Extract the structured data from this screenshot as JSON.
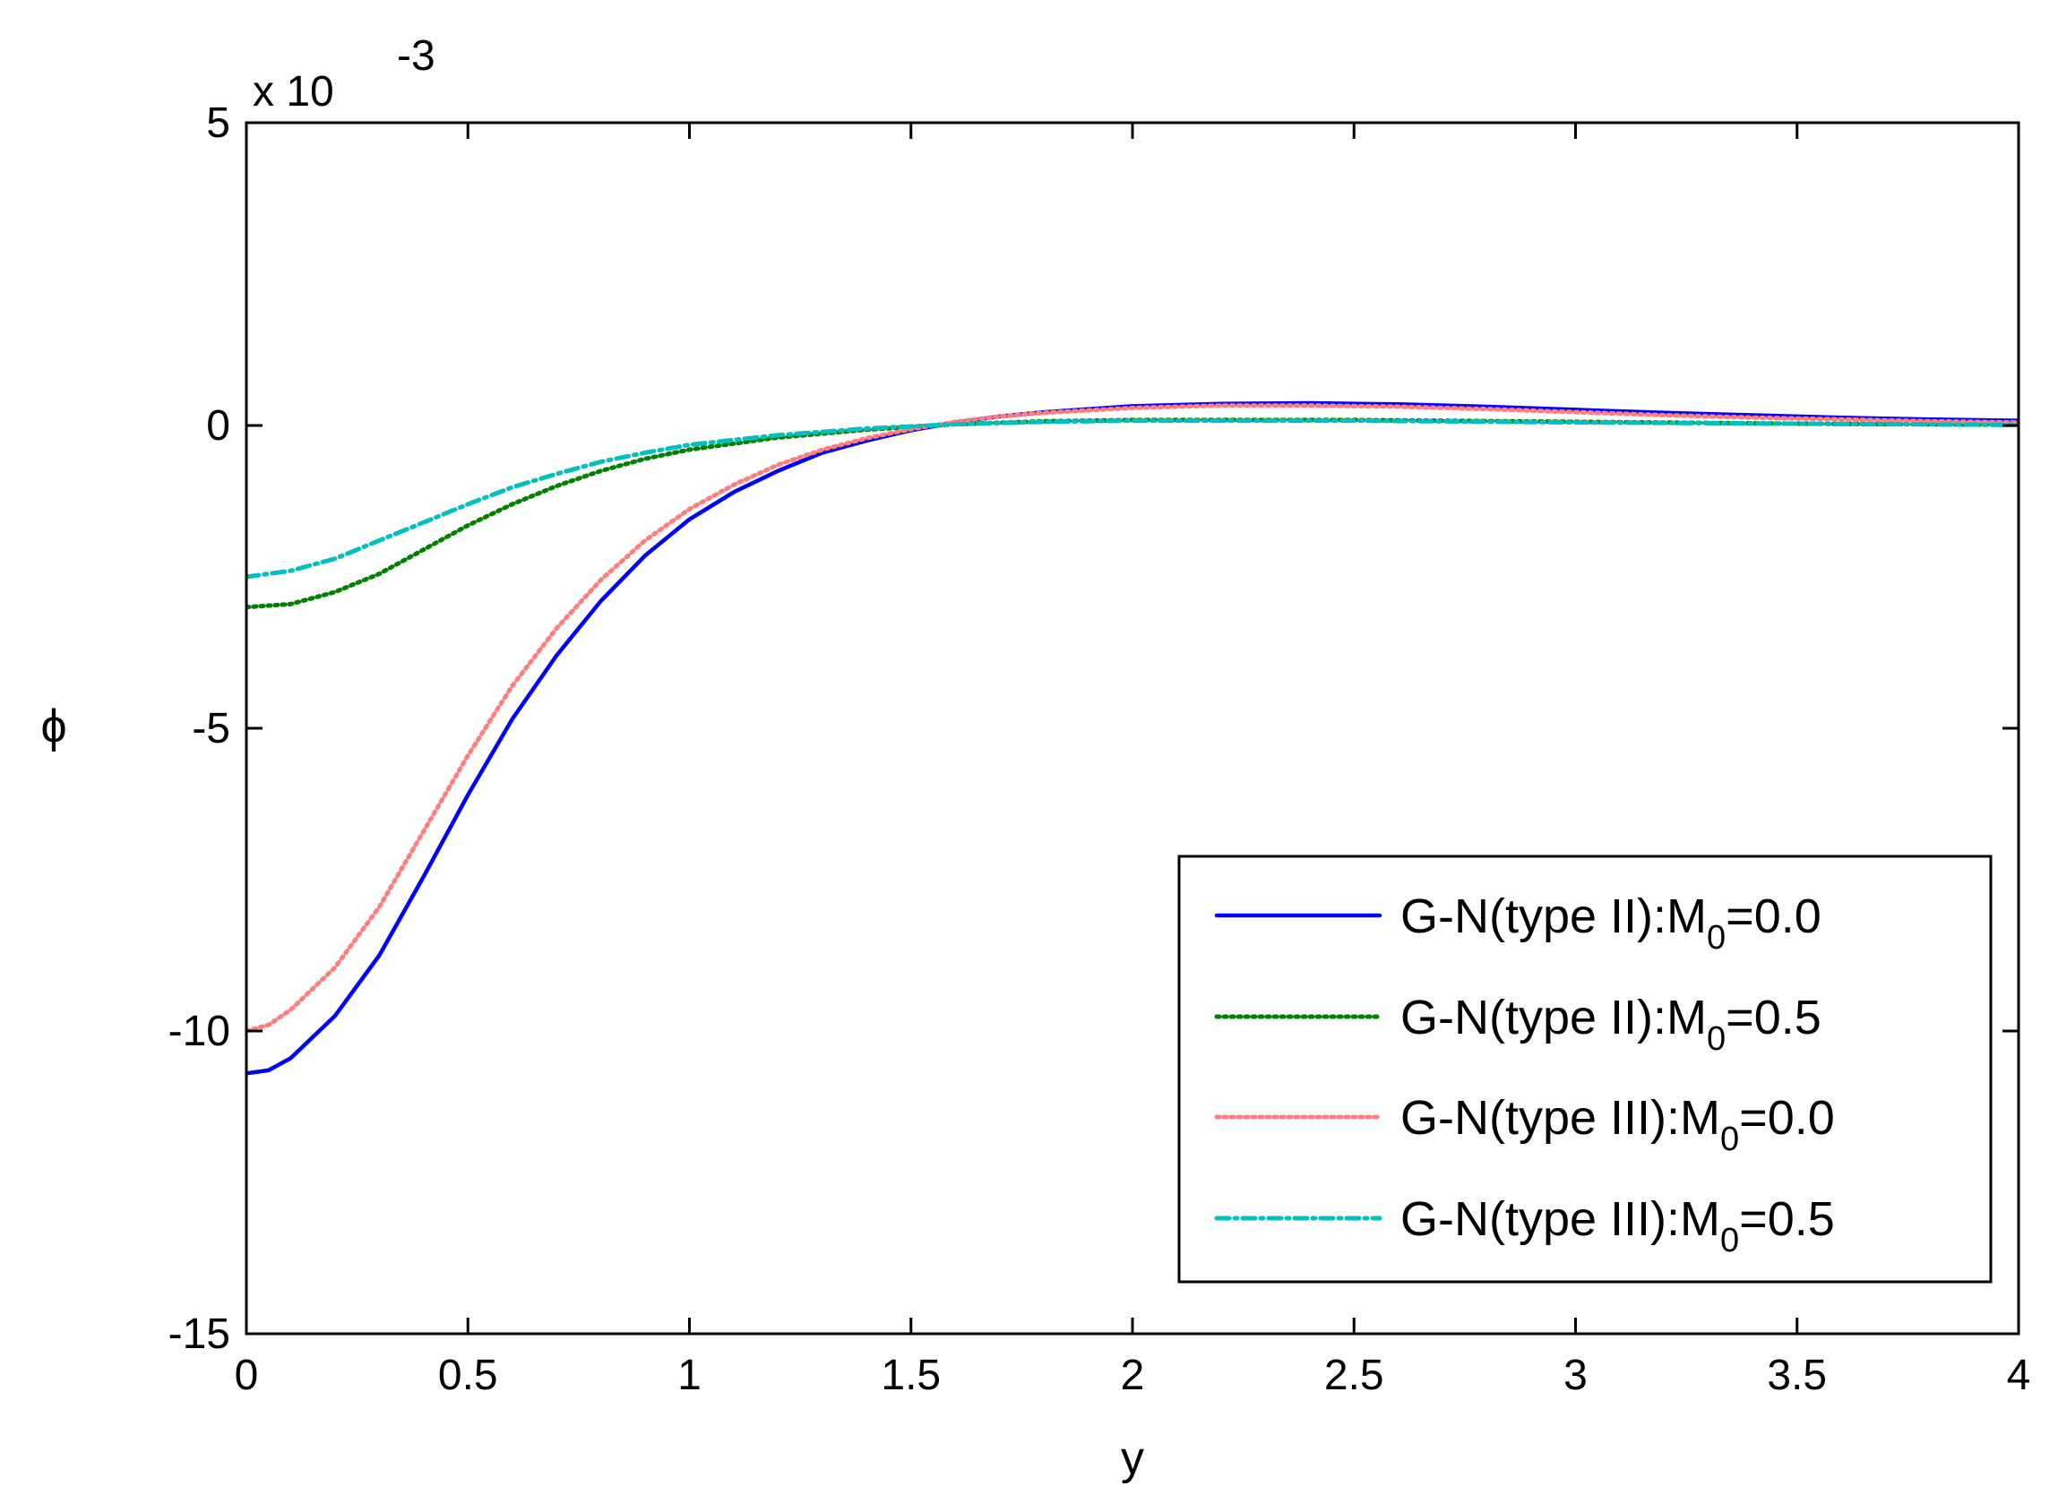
{
  "chart_data": {
    "type": "line",
    "title": "",
    "xlabel": "y",
    "ylabel": "ϕ",
    "y_multiplier": "x 10",
    "y_multiplier_exponent": "-3",
    "xlim": [
      0,
      4
    ],
    "ylim": [
      -15,
      5
    ],
    "x_ticks": [
      0,
      0.5,
      1,
      1.5,
      2,
      2.5,
      3,
      3.5,
      4
    ],
    "x_tick_labels": [
      "0",
      "0.5",
      "1",
      "1.5",
      "2",
      "2.5",
      "3",
      "3.5",
      "4"
    ],
    "y_ticks": [
      -15,
      -10,
      -5,
      0,
      5
    ],
    "y_tick_labels": [
      "-15",
      "-10",
      "-5",
      "0",
      "5"
    ],
    "grid": false,
    "legend_position": "bottom-right",
    "series": [
      {
        "label_main": "G-N(type II):M",
        "label_sub": "0",
        "label_end": "=0.0",
        "color": "#0000ff",
        "style": "solid",
        "x": [
          0,
          0.05,
          0.1,
          0.2,
          0.3,
          0.4,
          0.5,
          0.6,
          0.7,
          0.8,
          0.9,
          1.0,
          1.1,
          1.2,
          1.3,
          1.4,
          1.5,
          1.6,
          1.7,
          1.8,
          2.0,
          2.2,
          2.4,
          2.6,
          2.8,
          3.0,
          3.2,
          3.4,
          3.6,
          3.8,
          4.0
        ],
        "y": [
          -10.7,
          -10.65,
          -10.45,
          -9.75,
          -8.75,
          -7.45,
          -6.1,
          -4.85,
          -3.8,
          -2.9,
          -2.15,
          -1.55,
          -1.1,
          -0.75,
          -0.45,
          -0.25,
          -0.08,
          0.05,
          0.15,
          0.22,
          0.32,
          0.36,
          0.37,
          0.35,
          0.31,
          0.26,
          0.21,
          0.17,
          0.13,
          0.1,
          0.08
        ]
      },
      {
        "label_main": "G-N(type II):M",
        "label_sub": "0",
        "label_end": "=0.5",
        "color": "#007f00",
        "style": "dotted",
        "x": [
          0,
          0.1,
          0.2,
          0.3,
          0.4,
          0.5,
          0.6,
          0.7,
          0.8,
          0.9,
          1.0,
          1.2,
          1.4,
          1.6,
          1.8,
          2.0,
          2.5,
          3.0,
          3.5,
          4.0
        ],
        "y": [
          -3.0,
          -2.95,
          -2.75,
          -2.45,
          -2.05,
          -1.65,
          -1.3,
          -1.0,
          -0.75,
          -0.55,
          -0.4,
          -0.2,
          -0.07,
          0.02,
          0.07,
          0.09,
          0.09,
          0.06,
          0.03,
          0.01
        ]
      },
      {
        "label_main": "G-N(type III):M",
        "label_sub": "0",
        "label_end": "=0.0",
        "color": "#ff7f7f",
        "style": "dotted",
        "x": [
          0,
          0.05,
          0.1,
          0.2,
          0.3,
          0.4,
          0.5,
          0.6,
          0.7,
          0.8,
          0.9,
          1.0,
          1.1,
          1.2,
          1.3,
          1.4,
          1.5,
          1.6,
          1.7,
          1.8,
          2.0,
          2.2,
          2.4,
          2.6,
          2.8,
          3.0,
          3.2,
          3.4,
          3.6,
          3.8,
          4.0
        ],
        "y": [
          -10.0,
          -9.9,
          -9.65,
          -8.95,
          -7.95,
          -6.7,
          -5.45,
          -4.3,
          -3.35,
          -2.55,
          -1.9,
          -1.38,
          -0.98,
          -0.65,
          -0.4,
          -0.21,
          -0.06,
          0.06,
          0.15,
          0.21,
          0.29,
          0.33,
          0.33,
          0.31,
          0.27,
          0.22,
          0.17,
          0.13,
          0.1,
          0.07,
          0.05
        ]
      },
      {
        "label_main": "G-N(type III):M",
        "label_sub": "0",
        "label_end": "=0.5",
        "color": "#00bfbf",
        "style": "dashdot",
        "x": [
          0,
          0.1,
          0.2,
          0.3,
          0.4,
          0.5,
          0.6,
          0.7,
          0.8,
          0.9,
          1.0,
          1.2,
          1.4,
          1.6,
          1.8,
          2.0,
          2.5,
          3.0,
          3.5,
          4.0
        ],
        "y": [
          -2.5,
          -2.4,
          -2.2,
          -1.9,
          -1.6,
          -1.3,
          -1.02,
          -0.8,
          -0.6,
          -0.45,
          -0.32,
          -0.16,
          -0.05,
          0.02,
          0.06,
          0.08,
          0.08,
          0.05,
          0.03,
          0.01
        ]
      }
    ]
  }
}
